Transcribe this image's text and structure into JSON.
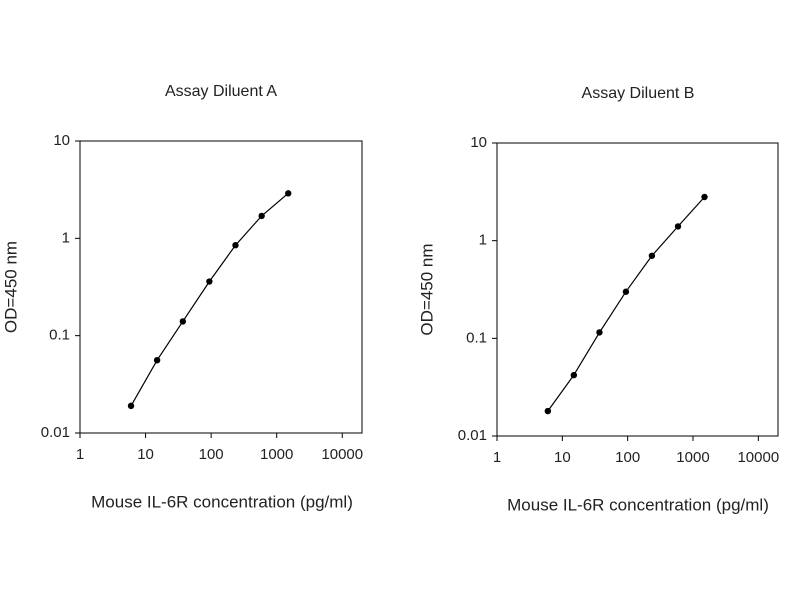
{
  "chart_data": [
    {
      "type": "line",
      "title": "Assay Diluent A",
      "x_label": "Mouse IL-6R concentration (pg/ml)",
      "y_label": "OD=450 nm",
      "x_log": true,
      "y_log": true,
      "color": "#000000",
      "x": [
        6,
        15,
        37,
        94,
        235,
        590,
        1500
      ],
      "values": [
        0.019,
        0.056,
        0.14,
        0.36,
        0.85,
        1.7,
        2.9
      ],
      "xlim": [
        1,
        20000
      ],
      "xticks": [
        1,
        10,
        100,
        1000,
        10000
      ],
      "ylim": [
        0.01,
        10
      ],
      "yticks": [
        0.01,
        0.1,
        1,
        10
      ]
    },
    {
      "type": "line",
      "title": "Assay Diluent B",
      "x_label": "Mouse IL-6R concentration (pg/ml)",
      "y_label": "OD=450 nm",
      "x_log": true,
      "y_log": true,
      "color": "#000000",
      "x": [
        6,
        15,
        37,
        94,
        235,
        590,
        1500
      ],
      "values": [
        0.018,
        0.042,
        0.115,
        0.3,
        0.7,
        1.4,
        2.8
      ],
      "xlim": [
        1,
        20000
      ],
      "xticks": [
        1,
        10,
        100,
        1000,
        10000
      ],
      "ylim": [
        0.01,
        10
      ],
      "yticks": [
        0.01,
        0.1,
        1,
        10
      ]
    }
  ]
}
